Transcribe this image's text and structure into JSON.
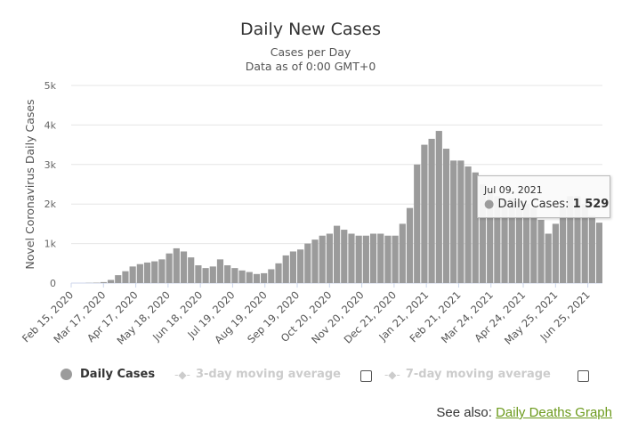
{
  "chart_data": {
    "type": "bar",
    "title": "Daily New Cases",
    "subtitle": [
      "Cases per Day",
      "Data as of 0:00 GMT+0"
    ],
    "ylabel": "Novel Coronavirus Daily Cases",
    "xlabel": "",
    "ylim": [
      0,
      5000
    ],
    "yticks": [
      {
        "v": 0,
        "label": "0"
      },
      {
        "v": 1000,
        "label": "1k"
      },
      {
        "v": 2000,
        "label": "2k"
      },
      {
        "v": 3000,
        "label": "3k"
      },
      {
        "v": 4000,
        "label": "4k"
      },
      {
        "v": 5000,
        "label": "5k"
      }
    ],
    "x_start": "2020-02-15",
    "x_end": "2021-07-09",
    "xticks": [
      {
        "d": "2020-02-15",
        "label": "Feb 15, 2020"
      },
      {
        "d": "2020-03-17",
        "label": "Mar 17, 2020"
      },
      {
        "d": "2020-04-17",
        "label": "Apr 17, 2020"
      },
      {
        "d": "2020-05-18",
        "label": "May 18, 2020"
      },
      {
        "d": "2020-06-18",
        "label": "Jun 18, 2020"
      },
      {
        "d": "2020-07-19",
        "label": "Jul 19, 2020"
      },
      {
        "d": "2020-08-19",
        "label": "Aug 19, 2020"
      },
      {
        "d": "2020-09-19",
        "label": "Sep 19, 2020"
      },
      {
        "d": "2020-10-20",
        "label": "Oct 20, 2020"
      },
      {
        "d": "2020-11-20",
        "label": "Nov 20, 2020"
      },
      {
        "d": "2020-12-21",
        "label": "Dec 21, 2020"
      },
      {
        "d": "2021-01-21",
        "label": "Jan 21, 2021"
      },
      {
        "d": "2021-02-21",
        "label": "Feb 21, 2021"
      },
      {
        "d": "2021-03-24",
        "label": "Mar 24, 2021"
      },
      {
        "d": "2021-04-24",
        "label": "Apr 24, 2021"
      },
      {
        "d": "2021-05-25",
        "label": "May 25, 2021"
      },
      {
        "d": "2021-06-25",
        "label": "Jun 25, 2021"
      }
    ],
    "series": [
      {
        "name": "Daily Cases",
        "color": "#9b9b9b",
        "interval_days": 7,
        "values": [
          0,
          0,
          5,
          10,
          25,
          80,
          200,
          300,
          420,
          480,
          520,
          550,
          600,
          750,
          880,
          800,
          650,
          450,
          380,
          420,
          600,
          450,
          380,
          320,
          280,
          230,
          250,
          350,
          500,
          700,
          800,
          850,
          1000,
          1100,
          1200,
          1250,
          1450,
          1350,
          1250,
          1200,
          1200,
          1250,
          1250,
          1200,
          1200,
          1500,
          1900,
          3000,
          3500,
          3650,
          3850,
          3400,
          3100,
          3100,
          2950,
          2800,
          2500,
          2300,
          2200,
          2100,
          2150,
          2050,
          2000,
          1900,
          1600,
          1250,
          1500,
          1900,
          2200,
          2200,
          2000,
          1700,
          1529
        ]
      }
    ],
    "legend": {
      "placement": "bottom-left",
      "items": [
        "Daily Cases",
        "3-day moving average",
        "7-day moving average"
      ]
    },
    "grid": true
  },
  "tooltip": {
    "date": "Jul 09, 2021",
    "label": "Daily Cases:",
    "value": "1 529"
  },
  "footer": {
    "see_also": "See also:",
    "link": "Daily Deaths Graph"
  }
}
